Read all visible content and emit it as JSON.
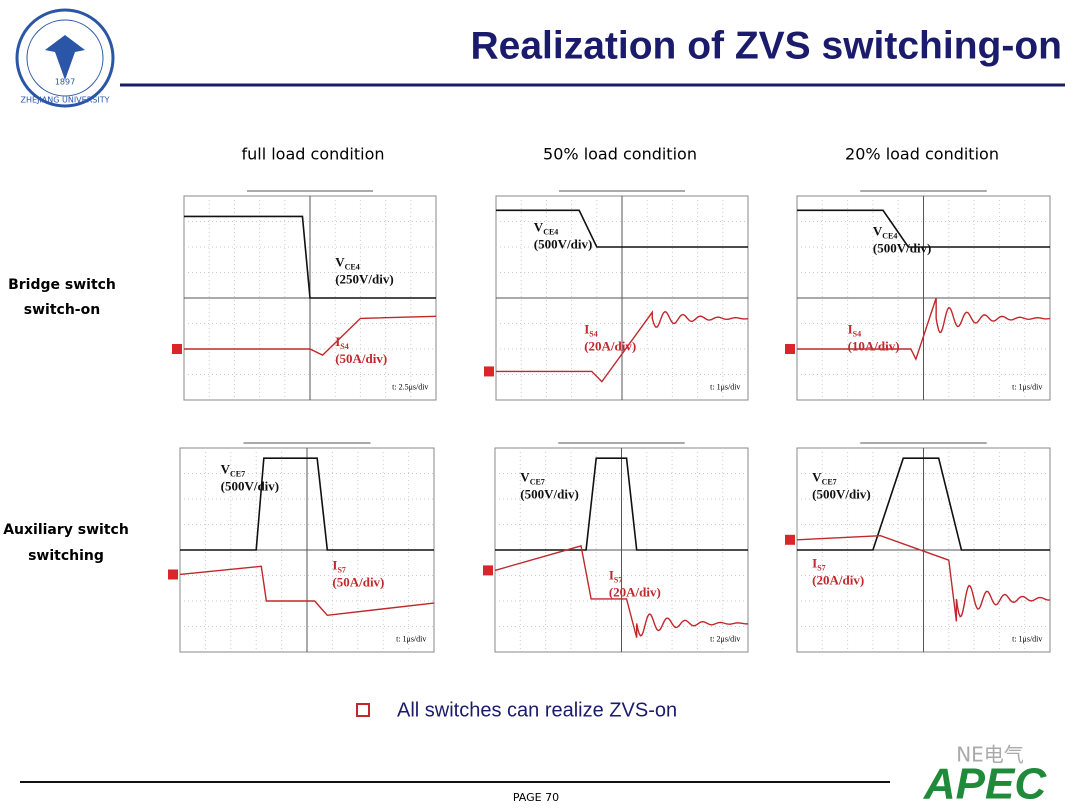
{
  "header": {
    "title": "Realization of ZVS  switching-on",
    "logo_year": "1897",
    "logo_name": "ZHEJIANG UNIVERSITY"
  },
  "columns": [
    "full load condition",
    "50% load condition",
    "20% load condition"
  ],
  "rows": [
    [
      "Bridge switch",
      "switch-on"
    ],
    [
      "Auxiliary switch",
      "switching"
    ]
  ],
  "panels": [
    {
      "v_symbol": "V",
      "v_sub": "CE4",
      "v_scale": "(250V/div)",
      "i_symbol": "I",
      "i_sub": "S4",
      "i_scale": "(50A/div)",
      "timebase": "t: 2.5μs/div"
    },
    {
      "v_symbol": "V",
      "v_sub": "CE4",
      "v_scale": "(500V/div)",
      "i_symbol": "I",
      "i_sub": "S4",
      "i_scale": "(20A/div)",
      "timebase": "t: 1μs/div"
    },
    {
      "v_symbol": "V",
      "v_sub": "CE4",
      "v_scale": "(500V/div)",
      "i_symbol": "I",
      "i_sub": "S4",
      "i_scale": "(10A/div)",
      "timebase": "t: 1μs/div"
    },
    {
      "v_symbol": "V",
      "v_sub": "CE7",
      "v_scale": "(500V/div)",
      "i_symbol": "I",
      "i_sub": "S7",
      "i_scale": "(50A/div)",
      "timebase": "t: 1μs/div"
    },
    {
      "v_symbol": "V",
      "v_sub": "CE7",
      "v_scale": "(500V/div)",
      "i_symbol": "I",
      "i_sub": "S7",
      "i_scale": "(20A/div)",
      "timebase": "t: 2μs/div"
    },
    {
      "v_symbol": "V",
      "v_sub": "CE7",
      "v_scale": "(500V/div)",
      "i_symbol": "I",
      "i_sub": "S7",
      "i_scale": "(20A/div)",
      "timebase": "t: 1μs/div"
    }
  ],
  "bullet": "All switches can realize ZVS-on",
  "footer": {
    "page": "PAGE 70",
    "brand": "APEC",
    "watermark": "NE电气"
  }
}
